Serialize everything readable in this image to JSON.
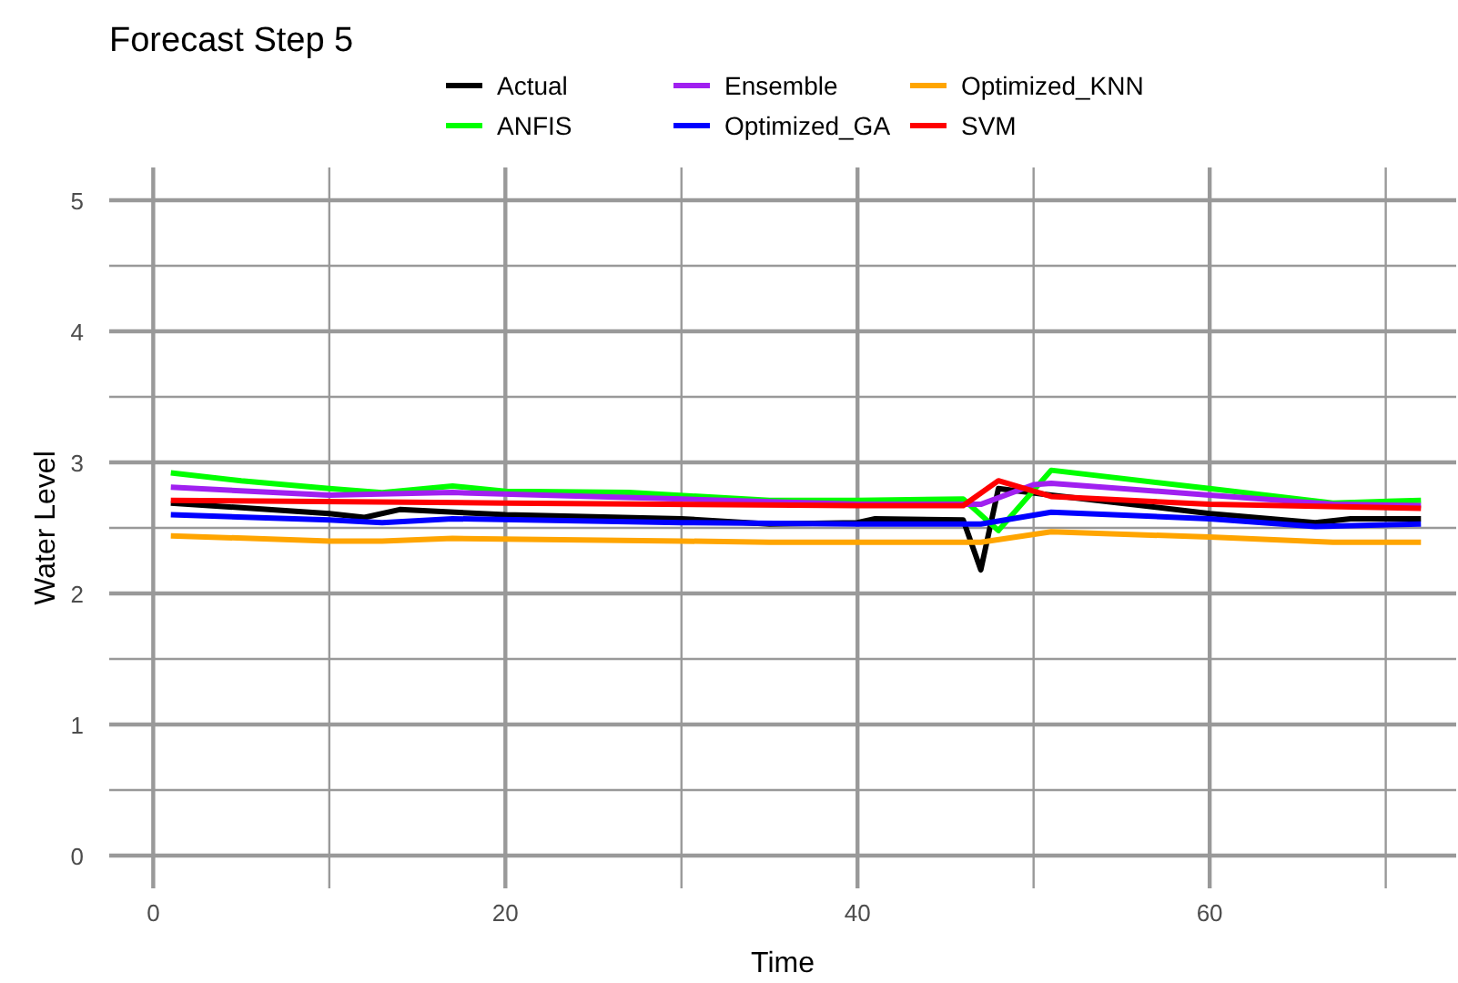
{
  "chart_data": {
    "type": "line",
    "title": "Forecast Step 5",
    "xlabel": "Time",
    "ylabel": "Water Level",
    "xlim": [
      -2.5,
      74
    ],
    "ylim": [
      -0.25,
      5.25
    ],
    "xticks": [
      0,
      {
        "value": 10,
        "label": null
      },
      20,
      {
        "value": 30,
        "label": null
      },
      40,
      {
        "value": 50,
        "label": null
      },
      60,
      {
        "value": 70,
        "label": null
      }
    ],
    "yticks": [
      0,
      {
        "value": 0.5,
        "label": null
      },
      1,
      {
        "value": 1.5,
        "label": null
      },
      2,
      {
        "value": 2.5,
        "label": null
      },
      3,
      {
        "value": 3.5,
        "label": null
      },
      4,
      {
        "value": 4.5,
        "label": null
      },
      5
    ],
    "grid": true,
    "legend": "top",
    "line_style": "solid",
    "marker": "none",
    "series": [
      {
        "name": "Actual",
        "color": "#000000",
        "x": [
          1,
          10,
          12,
          14,
          20,
          30,
          35,
          40,
          41,
          46,
          47,
          48,
          51,
          60,
          66,
          68,
          72
        ],
        "values": [
          2.69,
          2.61,
          2.58,
          2.64,
          2.6,
          2.57,
          2.53,
          2.54,
          2.57,
          2.56,
          2.18,
          2.8,
          2.75,
          2.61,
          2.54,
          2.57,
          2.57
        ]
      },
      {
        "name": "ANFIS",
        "color": "#00ff00",
        "x": [
          1,
          5,
          10,
          13,
          17,
          20,
          27,
          35,
          40,
          46,
          48,
          51,
          60,
          67,
          72
        ],
        "values": [
          2.92,
          2.86,
          2.8,
          2.77,
          2.82,
          2.78,
          2.77,
          2.71,
          2.71,
          2.72,
          2.48,
          2.94,
          2.8,
          2.69,
          2.71
        ]
      },
      {
        "name": "Ensemble",
        "color": "#a020f0",
        "x": [
          1,
          10,
          17,
          30,
          40,
          47,
          50,
          51,
          60,
          67,
          72
        ],
        "values": [
          2.81,
          2.75,
          2.77,
          2.72,
          2.68,
          2.68,
          2.83,
          2.84,
          2.75,
          2.68,
          2.67
        ]
      },
      {
        "name": "Optimized_GA",
        "color": "#0000ff",
        "x": [
          1,
          10,
          13,
          17,
          30,
          40,
          47,
          51,
          60,
          66,
          72
        ],
        "values": [
          2.6,
          2.56,
          2.54,
          2.57,
          2.54,
          2.53,
          2.53,
          2.62,
          2.57,
          2.51,
          2.53
        ]
      },
      {
        "name": "Optimized_KNN",
        "color": "#ffa500",
        "x": [
          1,
          10,
          13,
          17,
          30,
          35,
          47,
          51,
          60,
          67,
          72
        ],
        "values": [
          2.44,
          2.4,
          2.4,
          2.42,
          2.4,
          2.39,
          2.39,
          2.47,
          2.43,
          2.39,
          2.39
        ]
      },
      {
        "name": "SVM",
        "color": "#ff0000",
        "x": [
          1,
          20,
          40,
          46,
          48,
          51,
          60,
          72
        ],
        "values": [
          2.71,
          2.69,
          2.67,
          2.67,
          2.86,
          2.74,
          2.68,
          2.65
        ]
      }
    ]
  }
}
